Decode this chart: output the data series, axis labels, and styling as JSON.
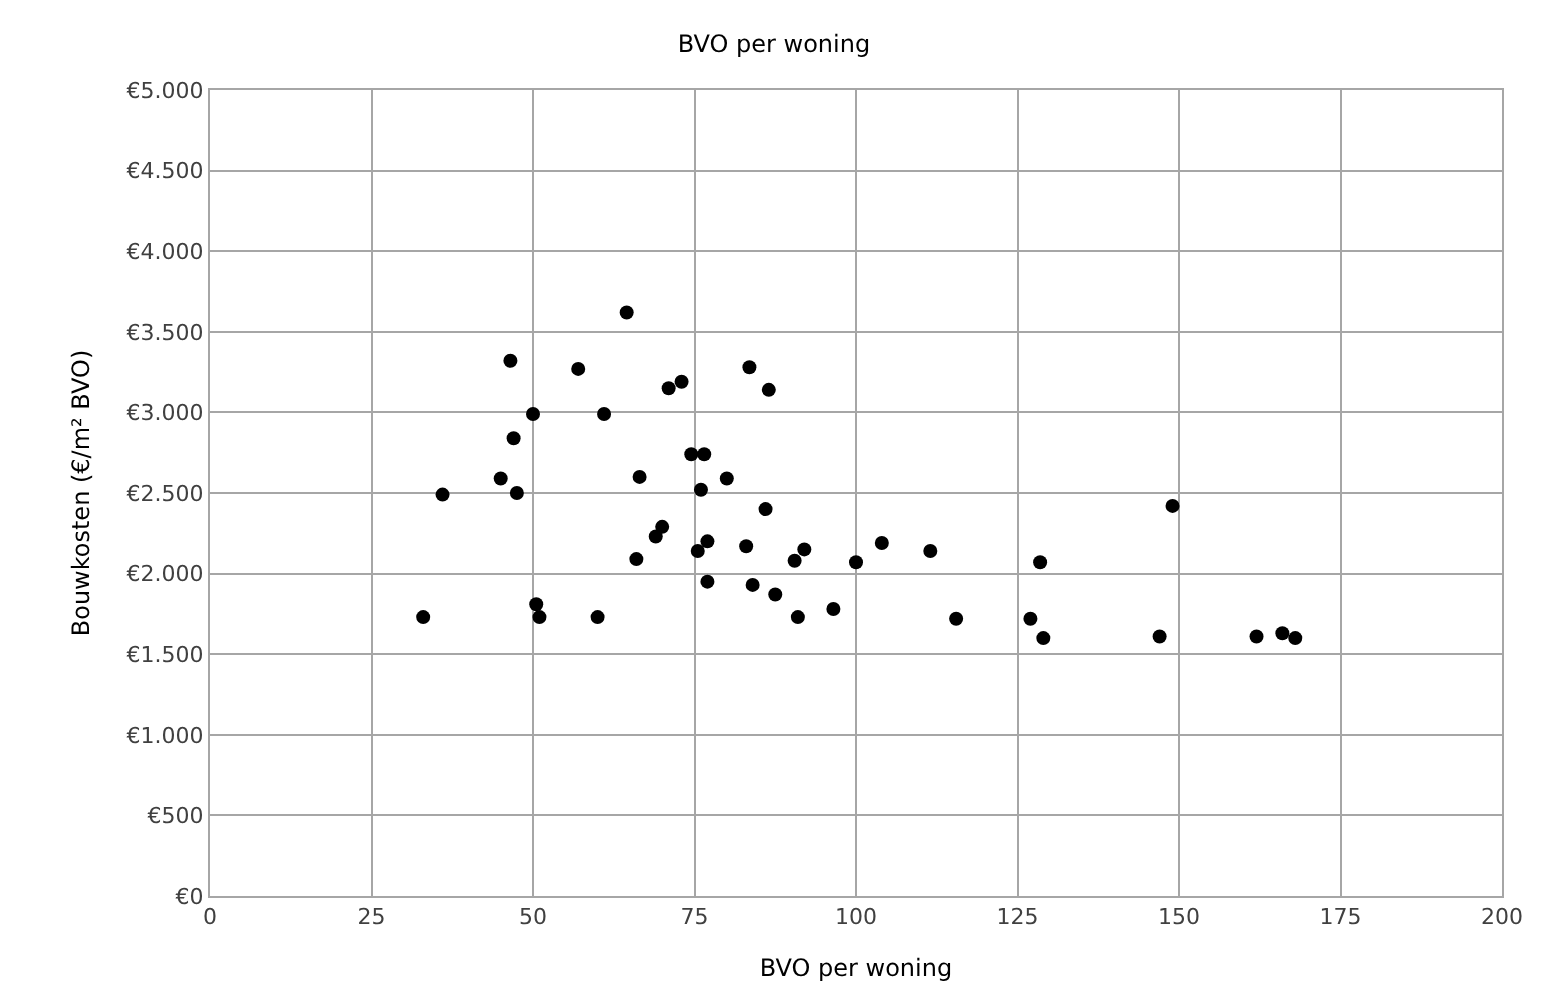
{
  "chart_data": {
    "type": "scatter",
    "title": "BVO per woning",
    "xlabel": "BVO per woning",
    "ylabel": "Bouwkosten (€/m² BVO)",
    "x": [
      33,
      36,
      45,
      46.5,
      47,
      47.5,
      50,
      50.5,
      51,
      57,
      60,
      61,
      64.5,
      66,
      66.5,
      69,
      70,
      71,
      73,
      74.5,
      75.5,
      76,
      76.5,
      77,
      77,
      80,
      83,
      83.5,
      84,
      86,
      86.5,
      87.5,
      90.5,
      91,
      92,
      96.5,
      100,
      104,
      111.5,
      115.5,
      127,
      128.5,
      129,
      147,
      149,
      162,
      166,
      168
    ],
    "series": [
      {
        "color": "#000000",
        "values": [
          1730,
          2490,
          2590,
          3320,
          2840,
          2500,
          2990,
          1810,
          1730,
          3270,
          1730,
          2990,
          3620,
          2090,
          2600,
          2230,
          2290,
          3150,
          3190,
          2740,
          2140,
          2520,
          2740,
          2200,
          1950,
          2590,
          2170,
          3280,
          1930,
          2400,
          3140,
          1870,
          2080,
          1730,
          2150,
          1780,
          2070,
          2190,
          2140,
          1720,
          1720,
          2070,
          1600,
          1610,
          2420,
          1610,
          1630,
          1600
        ]
      }
    ],
    "xlim": [
      0,
      200
    ],
    "xticks": [
      0,
      25,
      50,
      75,
      100,
      125,
      150,
      175,
      200
    ],
    "ylim": [
      0,
      5000
    ],
    "yticks": [
      {
        "value": 0,
        "label": "€0"
      },
      {
        "value": 500,
        "label": "€500"
      },
      {
        "value": 1000,
        "label": "€1.000"
      },
      {
        "value": 1500,
        "label": "€1.500"
      },
      {
        "value": 2000,
        "label": "€2.000"
      },
      {
        "value": 2500,
        "label": "€2.500"
      },
      {
        "value": 3000,
        "label": "€3.000"
      },
      {
        "value": 3500,
        "label": "€3.500"
      },
      {
        "value": 4000,
        "label": "€4.000"
      },
      {
        "value": 4500,
        "label": "€4.500"
      },
      {
        "value": 5000,
        "label": "€5.000"
      }
    ],
    "grid": true,
    "marker": "circle"
  }
}
